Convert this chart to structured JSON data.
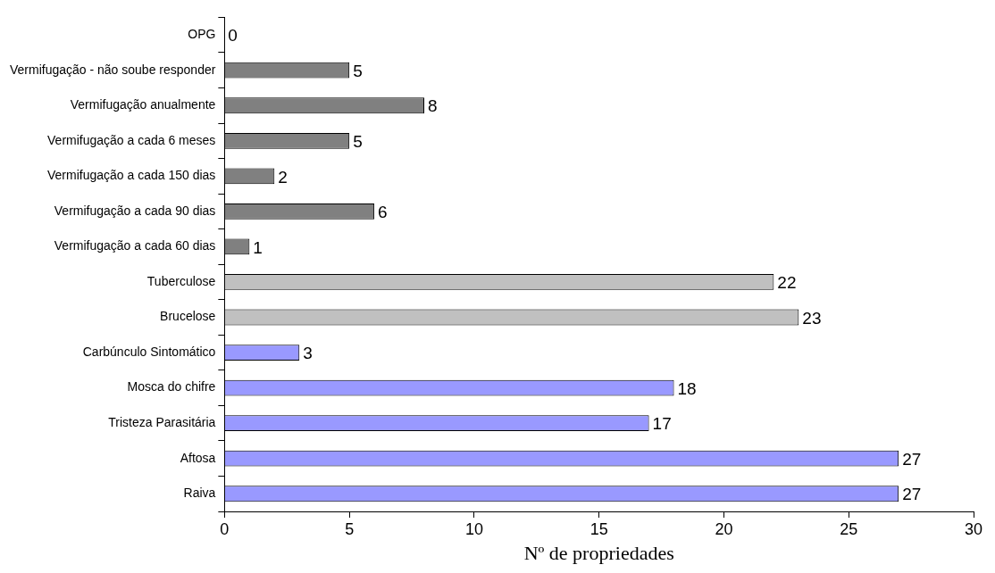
{
  "chart_data": {
    "type": "bar",
    "orientation": "horizontal",
    "xlabel": "Nº de propriedades",
    "categories": [
      "OPG",
      "Vermifugação - não soube responder",
      "Vermifugação anualmente",
      "Vermifugação a cada 6 meses",
      "Vermifugação a cada 150 dias",
      "Vermifugação a cada 90 dias",
      "Vermifugação a cada 60 dias",
      "Tuberculose",
      "Brucelose",
      "Carbúnculo Sintomático",
      "Mosca do chifre",
      "Tristeza Parasitária",
      "Aftosa",
      "Raiva"
    ],
    "values": [
      0,
      5,
      8,
      5,
      2,
      6,
      1,
      22,
      23,
      3,
      18,
      17,
      27,
      27
    ],
    "colors": [
      "#808080",
      "#808080",
      "#808080",
      "#808080",
      "#808080",
      "#808080",
      "#808080",
      "#c0c0c0",
      "#c0c0c0",
      "#9999ff",
      "#9999ff",
      "#9999ff",
      "#9999ff",
      "#9999ff"
    ],
    "xlim": [
      0,
      30
    ],
    "xticks": [
      0,
      5,
      10,
      15,
      20,
      25,
      30
    ],
    "data_labels": true,
    "grid": false,
    "legend": false
  }
}
